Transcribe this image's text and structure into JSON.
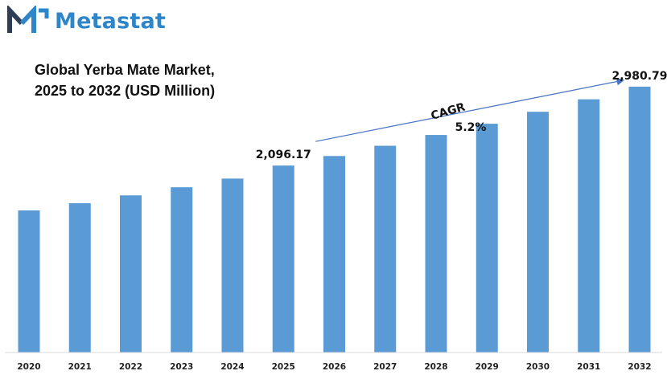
{
  "brand": {
    "name": "Metastat"
  },
  "title": {
    "line1": "Global Yerba Mate Market,",
    "line2": "2025 to 2032 (USD Million)"
  },
  "annotation": {
    "cagr_label": "CAGR",
    "cagr_value": "5.2%"
  },
  "colors": {
    "bar": "#5b9bd5",
    "brand": "#2e86c9",
    "arrow": "#4472c4"
  },
  "chart_data": {
    "type": "bar",
    "title": "Global Yerba Mate Market, 2025 to 2032 (USD Million)",
    "categories": [
      "2020",
      "2021",
      "2022",
      "2023",
      "2024",
      "2025",
      "2026",
      "2027",
      "2028",
      "2029",
      "2030",
      "2031",
      "2032"
    ],
    "values": [
      1593,
      1674,
      1762,
      1853,
      1950,
      2096.17,
      2203,
      2318,
      2439,
      2565,
      2699,
      2839,
      2980.79
    ],
    "data_labels": [
      {
        "category": "2025",
        "text": "2,096.17"
      },
      {
        "category": "2032",
        "text": "2,980.79"
      }
    ],
    "ylim": [
      0,
      3250
    ],
    "grid": false,
    "legend": "none",
    "xlabel": "",
    "ylabel": ""
  }
}
